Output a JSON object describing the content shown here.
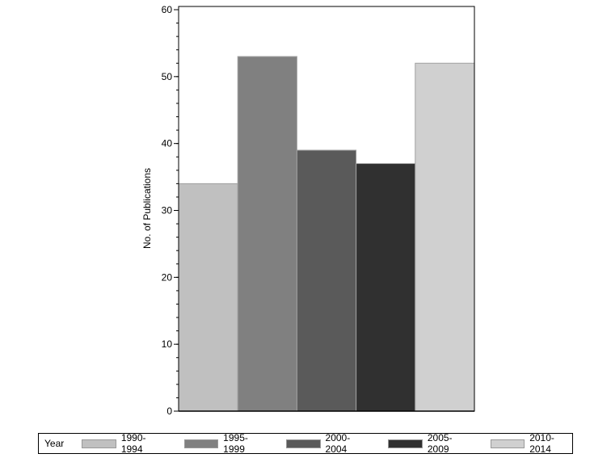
{
  "chart_data": {
    "type": "bar",
    "title": "",
    "xlabel": "",
    "ylabel": "No. of Publications",
    "ylim": [
      0,
      60
    ],
    "yticks": [
      0,
      10,
      20,
      30,
      40,
      50,
      60
    ],
    "grid": false,
    "legend_position": "bottom",
    "legend_title": "Year",
    "categories": [
      "1990-1994",
      "1995-1999",
      "2000-2004",
      "2005-2009",
      "2010-2014"
    ],
    "values": [
      34,
      53,
      39,
      37,
      52
    ],
    "colors": [
      "#c0c0c0",
      "#808080",
      "#5a5a5a",
      "#303030",
      "#d0d0d0"
    ]
  },
  "legend": {
    "title": "Year",
    "items": [
      {
        "label": "1990-1994",
        "color": "#c0c0c0"
      },
      {
        "label": "1995-1999",
        "color": "#808080"
      },
      {
        "label": "2000-2004",
        "color": "#5a5a5a"
      },
      {
        "label": "2005-2009",
        "color": "#303030"
      },
      {
        "label": "2010-2014",
        "color": "#d0d0d0"
      }
    ]
  }
}
